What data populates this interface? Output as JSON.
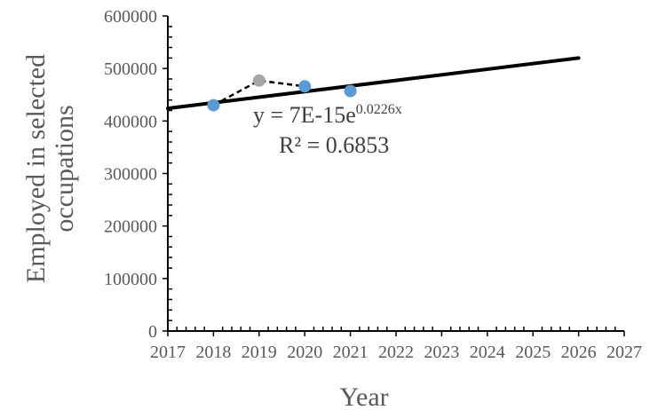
{
  "chart_data": {
    "type": "scatter",
    "title": "",
    "xlabel": "Year",
    "ylabel_lines": [
      "Employed in selected",
      "occupations"
    ],
    "xlim": [
      2017,
      2027
    ],
    "ylim": [
      0,
      600000
    ],
    "x_ticks": [
      2017,
      2018,
      2019,
      2020,
      2021,
      2022,
      2023,
      2024,
      2025,
      2026,
      2027
    ],
    "y_ticks": [
      0,
      100000,
      200000,
      300000,
      400000,
      500000,
      600000
    ],
    "grid": false,
    "series": [
      {
        "color": "#5b9bd5",
        "points": [
          {
            "x": 2018,
            "y": 430000,
            "color": "#5b9bd5"
          },
          {
            "x": 2019,
            "y": 477000,
            "color": "#a5a5a5"
          },
          {
            "x": 2020,
            "y": 466000,
            "color": "#5b9bd5"
          },
          {
            "x": 2021,
            "y": 457000,
            "color": "#5b9bd5"
          }
        ],
        "connector": {
          "from_x": 2018,
          "to_x": 2020,
          "style": "dashed",
          "color": "#000000"
        }
      }
    ],
    "trendline": {
      "type": "exponential",
      "x_range": [
        2017,
        2026
      ],
      "y_start": 424000,
      "y_end": 520000,
      "color": "#000000",
      "equation_base": "y = 7E-15e",
      "equation_exponent": "0.0226x",
      "r_squared": "R² = 0.6853"
    }
  }
}
